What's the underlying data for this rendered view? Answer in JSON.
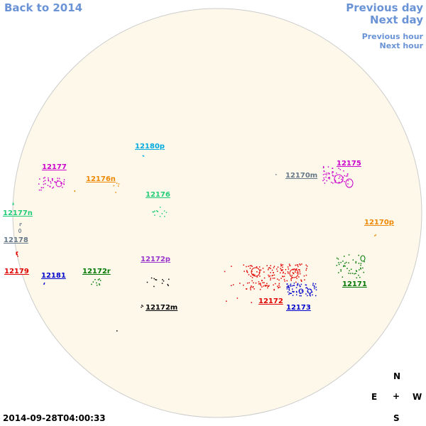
{
  "nav": {
    "back": "Back to 2014",
    "previous_day": "Previous day",
    "next_day": "Next day",
    "previous_hour": "Previous hour",
    "next_hour": "Next hour"
  },
  "timestamp": "2014-09-28T04:00:33",
  "compass": {
    "north": "N",
    "east": "E",
    "center": "+",
    "west": "W",
    "south": "S"
  },
  "colors": {
    "disk_fill": "#fdf8ea",
    "disk_stroke": "#cccccc",
    "nav_link": "#6a93d6",
    "red": "#e00000",
    "blue": "#0000cc",
    "green": "#007700",
    "magenta": "#cc00cc",
    "orange": "#ee8800",
    "cyan": "#00aadd",
    "teal": "#22cc77",
    "gray": "#667788",
    "purple": "#9933cc",
    "black": "#000000"
  },
  "regions": [
    {
      "label": "12180p",
      "color": "cyan"
    },
    {
      "label": "12177",
      "color": "magenta"
    },
    {
      "label": "12176n",
      "color": "orange"
    },
    {
      "label": "12176",
      "color": "teal"
    },
    {
      "label": "12177n",
      "color": "teal"
    },
    {
      "label": "12178",
      "color": "gray"
    },
    {
      "label": "12179",
      "color": "red"
    },
    {
      "label": "12181",
      "color": "blue"
    },
    {
      "label": "12172r",
      "color": "green"
    },
    {
      "label": "12172p",
      "color": "purple"
    },
    {
      "label": "12172m",
      "color": "black"
    },
    {
      "label": "12170m",
      "color": "gray"
    },
    {
      "label": "12175",
      "color": "magenta"
    },
    {
      "label": "12170p",
      "color": "orange"
    },
    {
      "label": "12171",
      "color": "green"
    },
    {
      "label": "12172",
      "color": "red"
    },
    {
      "label": "12173",
      "color": "blue"
    }
  ]
}
